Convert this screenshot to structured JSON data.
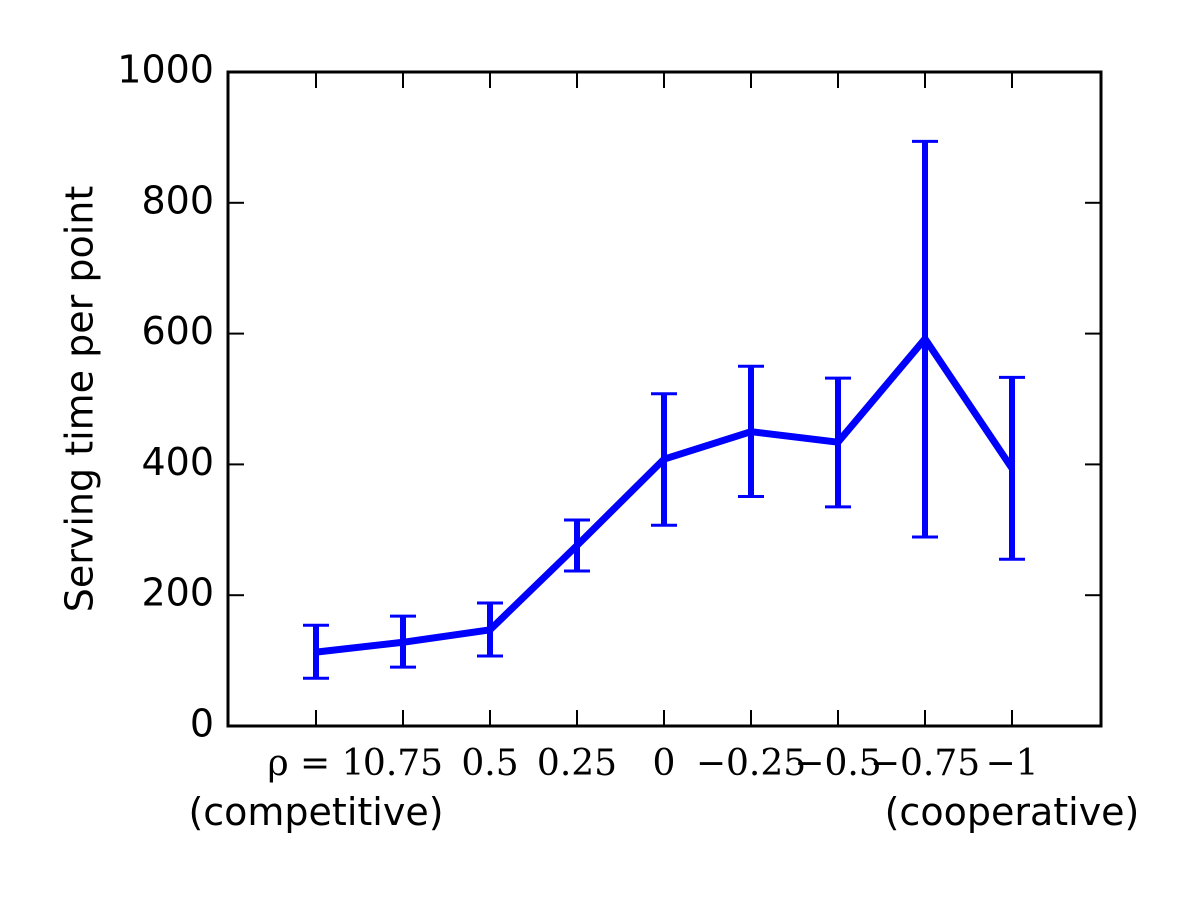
{
  "chart_data": {
    "type": "line",
    "title": "",
    "xlabel": "",
    "ylabel": "Serving time per point",
    "ylim": [
      0,
      1000
    ],
    "yticks": [
      0,
      200,
      400,
      600,
      800,
      1000
    ],
    "categories": [
      "ρ = 1",
      "0.75",
      "0.5",
      "0.25",
      "0",
      "−0.25",
      "−0.5",
      "−0.75",
      "−1"
    ],
    "x_notes": [
      "(competitive)",
      "(cooperative)"
    ],
    "color": "#0000ff",
    "series": [
      {
        "values": [
          113,
          128,
          147,
          276,
          408,
          450,
          434,
          592,
          394
        ],
        "err_low": [
          73,
          90,
          107,
          237,
          307,
          351,
          335,
          289,
          255
        ],
        "err_high": [
          154,
          168,
          188,
          315,
          508,
          550,
          532,
          894,
          533
        ]
      }
    ]
  }
}
